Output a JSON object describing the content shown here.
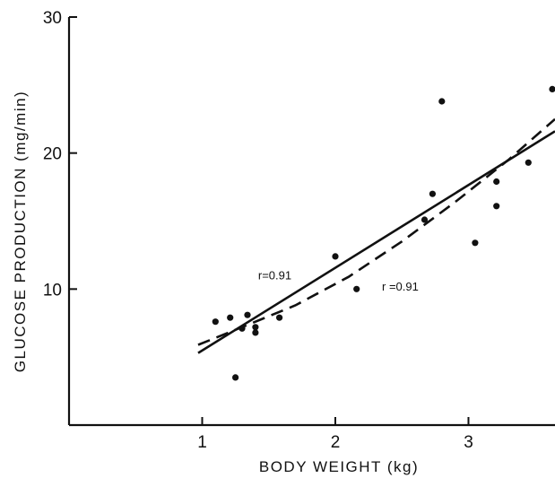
{
  "chart_data": {
    "type": "scatter",
    "xlabel": "BODY WEIGHT (kg)",
    "ylabel": "GLUCOSE PRODUCTION (mg/min)",
    "xlim": [
      0,
      3.65
    ],
    "ylim": [
      0,
      30
    ],
    "xticks": [
      1,
      2,
      3
    ],
    "yticks": [
      10,
      20,
      30
    ],
    "xtick_labels": [
      "1",
      "2",
      "3"
    ],
    "ytick_labels": [
      "10",
      "20",
      "30"
    ],
    "grid": false,
    "points": [
      {
        "x": 1.1,
        "y": 7.6
      },
      {
        "x": 1.21,
        "y": 7.9
      },
      {
        "x": 1.25,
        "y": 3.5
      },
      {
        "x": 1.3,
        "y": 7.1
      },
      {
        "x": 1.34,
        "y": 8.1
      },
      {
        "x": 1.4,
        "y": 7.2
      },
      {
        "x": 1.4,
        "y": 6.8
      },
      {
        "x": 1.58,
        "y": 7.9
      },
      {
        "x": 2.0,
        "y": 12.4
      },
      {
        "x": 2.16,
        "y": 10.0
      },
      {
        "x": 2.67,
        "y": 15.1
      },
      {
        "x": 2.73,
        "y": 17.0
      },
      {
        "x": 2.8,
        "y": 23.8
      },
      {
        "x": 3.05,
        "y": 13.4
      },
      {
        "x": 3.21,
        "y": 16.1
      },
      {
        "x": 3.21,
        "y": 17.9
      },
      {
        "x": 3.45,
        "y": 19.3
      },
      {
        "x": 3.63,
        "y": 24.7
      }
    ],
    "fits": [
      {
        "style": "solid",
        "x": [
          0.97,
          3.65
        ],
        "y": [
          5.3,
          21.6
        ]
      },
      {
        "style": "dashed",
        "x": [
          0.97,
          1.3,
          1.7,
          2.1,
          2.5,
          2.9,
          3.3,
          3.65
        ],
        "y": [
          5.9,
          7.2,
          8.8,
          10.9,
          13.5,
          16.4,
          19.5,
          22.5
        ]
      }
    ],
    "annotations": [
      {
        "text": "r=0.91",
        "x": 1.42,
        "y": 10.7
      },
      {
        "text": "r =0.91",
        "x": 2.35,
        "y": 9.9
      }
    ]
  }
}
